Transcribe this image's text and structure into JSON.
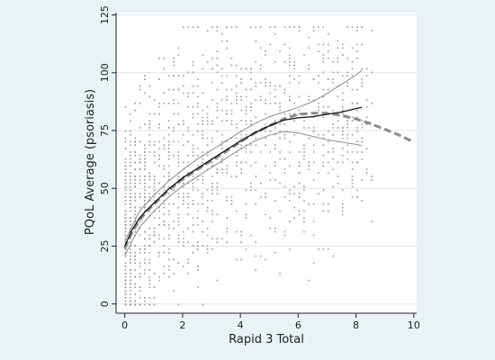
{
  "chart_data": {
    "type": "scatter",
    "xlabel": "Rapid 3 Total",
    "ylabel": "PQoL Average (psoriasis)",
    "xlim": [
      -0.3,
      10.1
    ],
    "ylim": [
      -4,
      126
    ],
    "xticks": [
      0,
      2,
      4,
      6,
      8,
      10
    ],
    "yticks": [
      0,
      25,
      50,
      75,
      100,
      125
    ],
    "grid": "horizontal",
    "colors": {
      "background": "#eaf2f3",
      "plot_background": "#ffffff",
      "gridline": "#dce7ea",
      "points": "#9a9a9a",
      "fit_line": "#111111",
      "confidence_band": "#8c8c8c",
      "dashed_fit": "#8a8a8a"
    },
    "series": [
      {
        "style": "dashed-thick",
        "x": [
          0,
          0.25,
          0.5,
          0.75,
          1,
          1.5,
          2,
          2.5,
          3,
          3.5,
          4,
          4.5,
          5,
          5.5,
          6,
          6.5,
          7,
          7.5,
          8,
          8.5,
          9,
          9.5,
          10
        ],
        "y": [
          24,
          31,
          36,
          40,
          43,
          49,
          54,
          58,
          62,
          66,
          70,
          74,
          77,
          80,
          82,
          82.5,
          82.5,
          81.5,
          80,
          78,
          75.5,
          73,
          70
        ]
      },
      {
        "style": "solid",
        "x": [
          0,
          0.25,
          0.5,
          0.75,
          1,
          1.5,
          2,
          2.5,
          3,
          3.5,
          4,
          4.5,
          5,
          5.5,
          6,
          6.5,
          7,
          7.5,
          8,
          8.2
        ],
        "y": [
          25,
          32,
          37,
          40.5,
          43.5,
          49.5,
          54.5,
          58.5,
          62.5,
          66.5,
          70.5,
          74,
          77,
          79.5,
          80.5,
          81,
          82,
          83,
          84.5,
          85
        ]
      },
      {
        "style": "band",
        "x": [
          0,
          0.5,
          1,
          1.5,
          2,
          2.5,
          3,
          3.5,
          4,
          4.5,
          5,
          5.5,
          6,
          6.5,
          7,
          7.5,
          8,
          8.2
        ],
        "y": [
          27,
          40,
          47,
          53,
          58,
          62.5,
          66.5,
          70.5,
          74.5,
          78,
          81,
          83,
          85,
          87.5,
          91,
          95,
          99,
          101
        ]
      },
      {
        "style": "band",
        "x": [
          0,
          0.5,
          1,
          1.5,
          2,
          2.5,
          3,
          3.5,
          4,
          4.5,
          5,
          5.5,
          6,
          6.5,
          7,
          7.5,
          8,
          8.2
        ],
        "y": [
          21,
          33,
          40,
          46,
          51,
          55,
          59,
          63,
          67,
          70.5,
          73,
          74.5,
          74,
          72.5,
          71,
          70,
          69,
          68.5
        ]
      }
    ]
  }
}
